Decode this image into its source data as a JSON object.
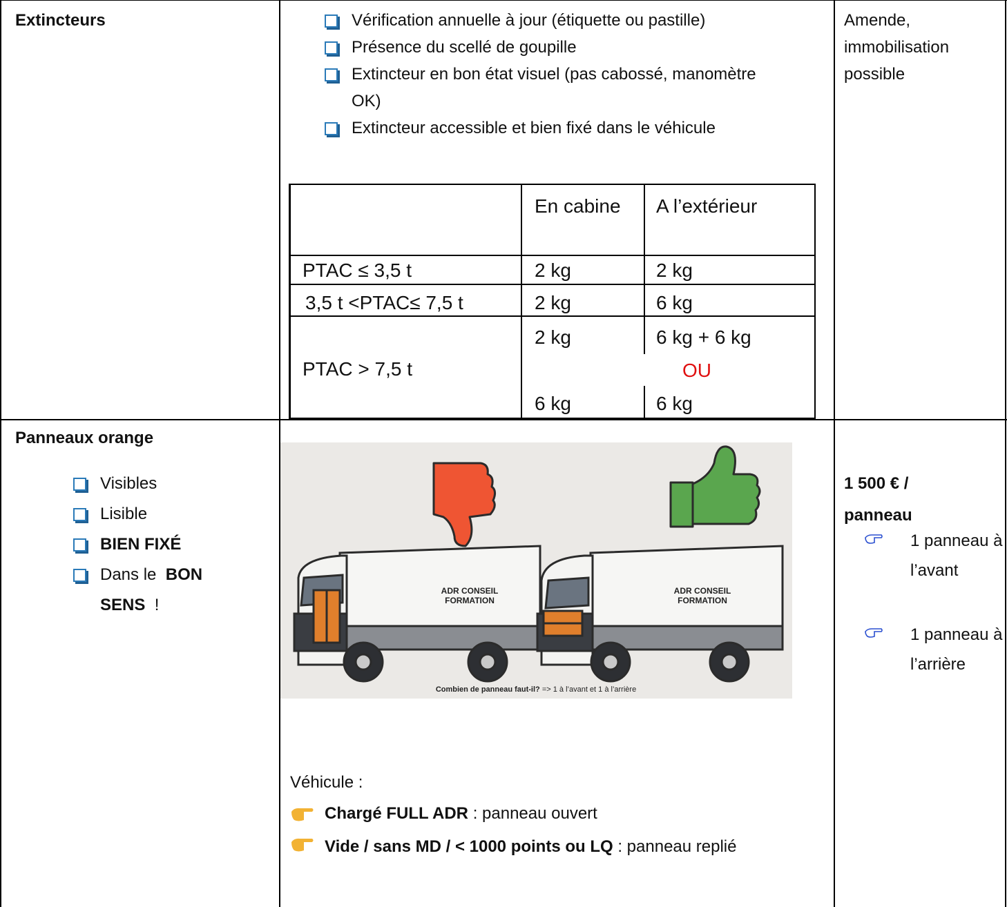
{
  "table": {
    "rows": [
      {
        "topic": "Extincteurs",
        "checks": [
          "Vérification annuelle à jour (étiquette ou pastille)",
          "Présence du scellé de goupille",
          "Extincteur en bon état visuel (pas cabossé, manomètre OK)",
          "Extincteur accessible et bien fixé dans le véhicule"
        ],
        "weights": {
          "columns": [
            "En cabine",
            "A l’extérieur"
          ],
          "rows": [
            {
              "label": "PTAC ≤ 3,5 t",
              "cabine": "2 kg",
              "exterieur": "2 kg"
            },
            {
              "label": "3,5 t <PTAC≤ 7,5 t",
              "cabine": "2 kg",
              "exterieur": "6 kg"
            },
            {
              "label": "PTAC > 7,5 t",
              "options": [
                {
                  "cabine": "2 kg",
                  "exterieur": "6 kg + 6 kg"
                },
                {
                  "cabine": "6 kg",
                  "exterieur": "6 kg"
                }
              ],
              "separator": "OU"
            }
          ]
        },
        "sanction": "Amende, immobilisation possible"
      },
      {
        "topic": "Panneaux orange",
        "checks": [
          [
            {
              "text": "Visibles"
            }
          ],
          [
            {
              "text": "Lisible"
            }
          ],
          [
            {
              "text": "BIEN FIXÉ",
              "bold": true
            }
          ],
          [
            {
              "text": "Dans le"
            },
            {
              "text": "BON SENS",
              "bold": true
            },
            {
              "text": "!"
            }
          ]
        ],
        "image": {
          "truck_labels": [
            [
              "ADR CONSEIL",
              "FORMATION"
            ],
            [
              "ADR CONSEIL",
              "FORMATION"
            ]
          ],
          "caption": {
            "question": "Combien de panneau faut-il?",
            "answer": "=> 1 à l’avant et 1 à l’arrière"
          }
        },
        "vehicle": {
          "label": "Véhicule :",
          "lines": [
            {
              "bold": "Chargé FULL ADR",
              "text": ": panneau ouvert"
            },
            {
              "bold": "Vide / sans MD / < 1000 points ou LQ",
              "text": ": panneau replié"
            }
          ]
        },
        "sanction": "1 500 € / panneau",
        "sanction_items": [
          "1 panneau à l’avant",
          "1 panneau à l’arrière"
        ]
      }
    ]
  }
}
